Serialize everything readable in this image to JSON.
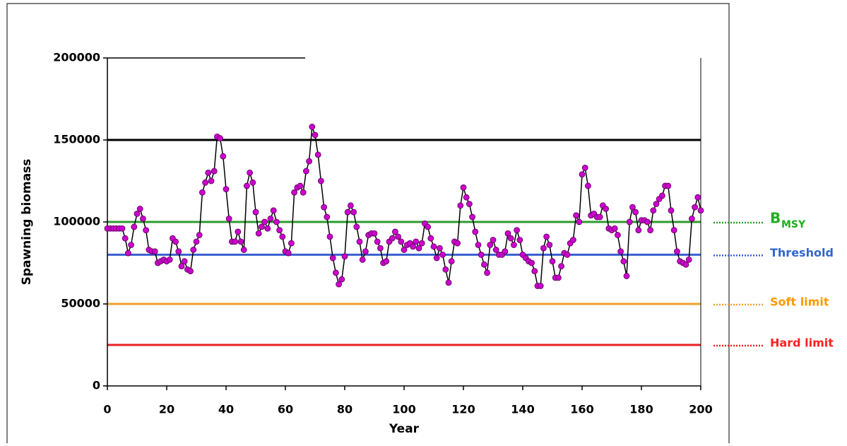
{
  "chart_data": {
    "type": "line",
    "x_label": "Year",
    "y_label": "Spawning biomass",
    "xlim": [
      0,
      200
    ],
    "xticks": [
      0,
      20,
      40,
      60,
      80,
      100,
      120,
      140,
      160,
      180,
      200
    ],
    "ylim": [
      0,
      200000
    ],
    "yticks": [
      0,
      50000,
      100000,
      150000,
      200000
    ],
    "line_color": "#000000",
    "marker_color": "#cc00cc",
    "reference_lines": [
      {
        "value": 150000,
        "color": "#000000"
      },
      {
        "value": 100000,
        "color": "#2e9b2e",
        "label": "B",
        "label_sub": "MSY",
        "label_color": "#1fae1f"
      },
      {
        "value": 80000,
        "color": "#3a5fd0",
        "label": "Threshold",
        "label_color": "#3366cc"
      },
      {
        "value": 50000,
        "color": "#f0a030",
        "label": "Soft limit",
        "label_color": "#ff9900"
      },
      {
        "value": 25000,
        "color": "#e82020",
        "label": "Hard limit",
        "label_color": "#ff2020"
      }
    ],
    "x": [
      0,
      1,
      2,
      3,
      4,
      5,
      6,
      7,
      8,
      9,
      10,
      11,
      12,
      13,
      14,
      15,
      16,
      17,
      18,
      19,
      20,
      21,
      22,
      23,
      24,
      25,
      26,
      27,
      28,
      29,
      30,
      31,
      32,
      33,
      34,
      35,
      36,
      37,
      38,
      39,
      40,
      41,
      42,
      43,
      44,
      45,
      46,
      47,
      48,
      49,
      50,
      51,
      52,
      53,
      54,
      55,
      56,
      57,
      58,
      59,
      60,
      61,
      62,
      63,
      64,
      65,
      66,
      67,
      68,
      69,
      70,
      71,
      72,
      73,
      74,
      75,
      76,
      77,
      78,
      79,
      80,
      81,
      82,
      83,
      84,
      85,
      86,
      87,
      88,
      89,
      90,
      91,
      92,
      93,
      94,
      95,
      96,
      97,
      98,
      99,
      100,
      101,
      102,
      103,
      104,
      105,
      106,
      107,
      108,
      109,
      110,
      111,
      112,
      113,
      114,
      115,
      116,
      117,
      118,
      119,
      120,
      121,
      122,
      123,
      124,
      125,
      126,
      127,
      128,
      129,
      130,
      131,
      132,
      133,
      134,
      135,
      136,
      137,
      138,
      139,
      140,
      141,
      142,
      143,
      144,
      145,
      146,
      147,
      148,
      149,
      150,
      151,
      152,
      153,
      154,
      155,
      156,
      157,
      158,
      159,
      160,
      161,
      162,
      163,
      164,
      165,
      166,
      167,
      168,
      169,
      170,
      171,
      172,
      173,
      174,
      175,
      176,
      177,
      178,
      179,
      180,
      181,
      182,
      183,
      184,
      185,
      186,
      187,
      188,
      189,
      190,
      191,
      192,
      193,
      194,
      195,
      196,
      197,
      198,
      199,
      200
    ],
    "values": [
      96000,
      96000,
      96000,
      96000,
      96000,
      96000,
      90000,
      81000,
      86000,
      97000,
      105000,
      108000,
      102000,
      95000,
      83000,
      82000,
      82000,
      75000,
      76000,
      77000,
      76000,
      77000,
      90000,
      88000,
      82000,
      73000,
      76000,
      71000,
      70000,
      83000,
      88000,
      92000,
      118000,
      124000,
      130000,
      125000,
      131000,
      152000,
      151000,
      140000,
      120000,
      102000,
      88000,
      88000,
      94000,
      88000,
      83000,
      122000,
      130000,
      124000,
      106000,
      93000,
      97000,
      100000,
      96000,
      102000,
      107000,
      100000,
      95000,
      91000,
      82000,
      81000,
      87000,
      118000,
      121000,
      122000,
      118000,
      131000,
      137000,
      158000,
      153000,
      141000,
      125000,
      109000,
      103000,
      91000,
      78000,
      69000,
      62000,
      65000,
      79000,
      106000,
      110000,
      106000,
      97000,
      88000,
      77000,
      82000,
      92000,
      93000,
      93000,
      88000,
      84000,
      75000,
      76000,
      88000,
      90000,
      94000,
      91000,
      88000,
      83000,
      86000,
      87000,
      85000,
      88000,
      84000,
      87000,
      99000,
      97000,
      90000,
      85000,
      78000,
      84000,
      80000,
      71000,
      63000,
      76000,
      88000,
      87000,
      110000,
      121000,
      115000,
      111000,
      103000,
      94000,
      86000,
      80000,
      74000,
      69000,
      86000,
      89000,
      83000,
      80000,
      80000,
      82000,
      93000,
      90000,
      86000,
      95000,
      89000,
      80000,
      78000,
      76000,
      75000,
      70000,
      61000,
      61000,
      84000,
      91000,
      86000,
      76000,
      66000,
      66000,
      73000,
      81000,
      80000,
      87000,
      89000,
      104000,
      100000,
      129000,
      133000,
      122000,
      104000,
      105000,
      103000,
      103000,
      110000,
      108000,
      96000,
      95000,
      96000,
      92000,
      82000,
      76000,
      67000,
      100000,
      109000,
      106000,
      95000,
      101000,
      101000,
      100000,
      95000,
      107000,
      111000,
      114000,
      116000,
      122000,
      122000,
      107000,
      95000,
      82000,
      76000,
      75000,
      74000,
      77000,
      102000,
      109000,
      115000,
      107000
    ]
  }
}
